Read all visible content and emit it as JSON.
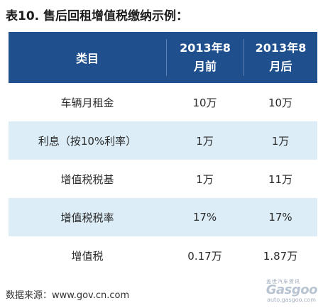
{
  "title": "表10. 售后回租增值税缴纳示例：",
  "table": {
    "headers": [
      "类目",
      "2013年8月前",
      "2013年8月后"
    ],
    "rows": [
      [
        "车辆月租金",
        "10万",
        "10万"
      ],
      [
        "利息（按10%利率）",
        "1万",
        "1万"
      ],
      [
        "增值税税基",
        "1万",
        "11万"
      ],
      [
        "增值税税率",
        "17%",
        "17%"
      ],
      [
        "增值税",
        "0.17万",
        "1.87万"
      ]
    ]
  },
  "source": "数据来源：www.gov.cn.com",
  "watermark": {
    "chinese": "盖世汽车资讯",
    "logo": "Gasgoo",
    "url": "auto.gasgoo.com"
  },
  "colors": {
    "header_bg": "#1f4f8c",
    "header_text": "#ffffff",
    "shaded_row": "#dcedf7"
  }
}
